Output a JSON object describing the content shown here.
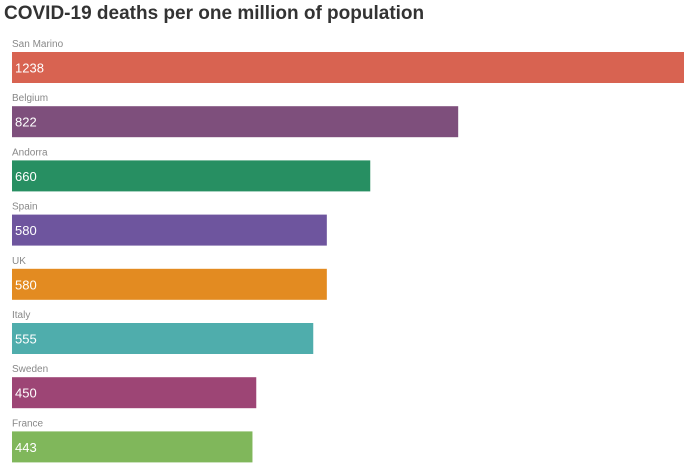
{
  "chart_data": {
    "type": "bar",
    "orientation": "horizontal",
    "title": "COVID-19 deaths per one million of population",
    "xlabel": "",
    "ylabel": "",
    "categories": [
      "San Marino",
      "Belgium",
      "Andorra",
      "Spain",
      "UK",
      "Italy",
      "Sweden",
      "France"
    ],
    "values": [
      1238,
      822,
      660,
      580,
      580,
      555,
      450,
      443
    ],
    "colors": [
      "#d86351",
      "#7e4f7c",
      "#278f62",
      "#6e559e",
      "#e38b21",
      "#4fadac",
      "#9d4575",
      "#80b75b"
    ],
    "xlim": [
      0,
      1238
    ],
    "grid": false,
    "legend": "none",
    "data_labels": "inside-left"
  }
}
